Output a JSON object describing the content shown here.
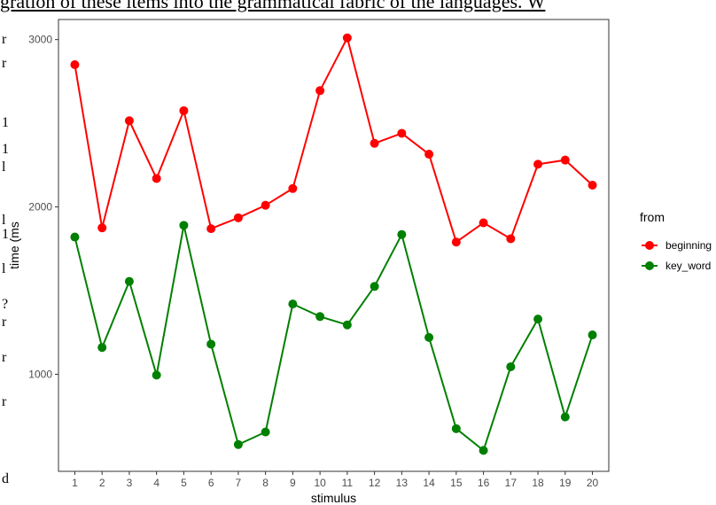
{
  "page": {
    "top_text": "gration of these items into the grammatical fabric of the languages. W",
    "left_fragments": [
      "r",
      "r",
      "1",
      "1",
      "l",
      "l",
      "1",
      "l",
      "?",
      "r",
      "r",
      "r",
      "d"
    ]
  },
  "chart_data": {
    "type": "line",
    "title": "",
    "xlabel": "stimulus",
    "ylabel": "time (ms",
    "x": [
      1,
      2,
      3,
      4,
      5,
      6,
      7,
      8,
      9,
      10,
      11,
      12,
      13,
      14,
      15,
      16,
      17,
      18,
      19,
      20
    ],
    "ylim": [
      420,
      3120
    ],
    "yticks": [
      1000,
      2000,
      3000
    ],
    "grid": false,
    "legend": {
      "title": "from",
      "position": "right"
    },
    "series": [
      {
        "name": "beginning",
        "color": "#ff0000",
        "values": [
          2850,
          1875,
          2515,
          2170,
          2575,
          1870,
          1935,
          2010,
          2110,
          2695,
          3010,
          2380,
          2440,
          2315,
          1790,
          1905,
          1810,
          2255,
          2280,
          2130
        ]
      },
      {
        "name": "key_word",
        "color": "#008000",
        "values": [
          1820,
          1160,
          1555,
          995,
          1890,
          1180,
          580,
          655,
          1420,
          1345,
          1295,
          1525,
          1835,
          1220,
          675,
          545,
          1045,
          1330,
          745,
          1235
        ]
      }
    ]
  }
}
